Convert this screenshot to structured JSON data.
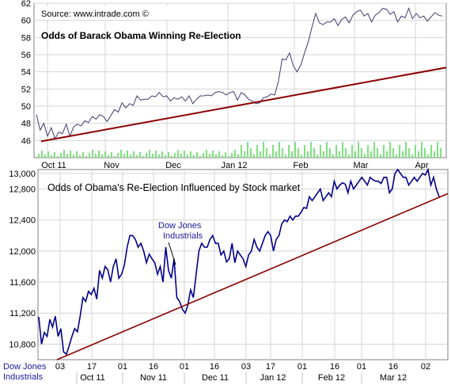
{
  "chart_data": [
    {
      "type": "line",
      "title": "Odds of Barack Obama Winning Re-Election",
      "source": "Source: www.intrade.com ©",
      "ylim": [
        44,
        62
      ],
      "y_ticks": [
        46,
        48,
        50,
        52,
        54,
        56,
        58,
        60,
        62
      ],
      "x_month_labels": [
        "Oct 11",
        "Nov",
        "Dec",
        "Jan 12",
        "Feb",
        "Mar",
        "Apr"
      ],
      "grid": true,
      "series": [
        {
          "values": [
            49,
            47.2,
            48,
            46.5,
            47.5,
            46.2,
            47,
            46.8,
            47.9,
            46.5,
            47.6,
            47.9,
            47.7,
            48.3,
            48.1,
            48.8,
            48.5,
            49,
            48.8,
            48.2,
            48.9,
            49.6,
            49.3,
            50.4,
            49.8,
            50.3,
            50.1,
            51.2,
            50.7,
            50.8,
            50.8,
            51.2,
            51.1,
            51.6,
            51.1,
            51.2,
            50.6,
            51,
            50.8,
            51.1,
            50.6,
            51.2,
            50.3,
            50.8,
            51.2,
            51.2,
            51.3,
            51.2,
            51.6,
            51.7,
            51.6,
            51.3,
            51.6,
            51.7,
            50.7,
            51.6,
            51.3,
            50.8,
            50.6,
            50.3,
            50.4,
            51,
            51.1,
            51.4,
            51.3,
            52.9,
            55.5,
            55.4,
            56.2,
            54.7,
            54,
            54.8,
            56.2,
            57.5,
            59.2,
            60.8,
            59.7,
            59.5,
            59.8,
            59.8,
            60.2,
            59.4,
            60.1,
            60.4,
            59.7,
            60.6,
            61,
            61.2,
            60.5,
            60.8,
            59.8,
            60.6,
            60.9,
            61.4,
            61.3,
            60.7,
            61,
            59.8,
            60.5,
            60.3,
            61.4,
            60.2,
            60.8,
            60.3,
            60.5,
            59.9,
            60.4,
            60.9,
            60.6,
            60.5
          ]
        },
        {
          "name": "trend",
          "x": [
            0,
            1
          ],
          "values": [
            45.9,
            54.5
          ]
        }
      ],
      "volume_bars": true
    },
    {
      "type": "line",
      "title": "Odds of Obama's Re-Election Influenced by Stock market",
      "ylim": [
        10600,
        13050
      ],
      "y_ticks": [
        10800,
        11200,
        11600,
        12000,
        12400,
        12800,
        13000
      ],
      "y_tick_labels": [
        "10,800",
        "11,200",
        "11,600",
        "12,000",
        "12,400",
        "12,800",
        "13,000"
      ],
      "x_day_labels": [
        "03",
        "17",
        "01",
        "16",
        "01",
        "16",
        "03",
        "17",
        "01",
        "16",
        "01",
        "16",
        "02"
      ],
      "x_month_labels": [
        "Oct 11",
        "Nov 11",
        "Dec 11",
        "Jan 12",
        "Feb 12",
        "Mar 12"
      ],
      "x_axis_label": "Dow Jones Industrials",
      "annotation": "Dow Jones Industrials",
      "grid": true,
      "series": [
        {
          "name": "Dow Jones Industrials",
          "values": [
            11150,
            10800,
            10950,
            10900,
            11120,
            11020,
            11160,
            10900,
            11000,
            10700,
            10670,
            10780,
            10900,
            11000,
            10960,
            11160,
            11400,
            11350,
            11480,
            11440,
            11520,
            11380,
            11750,
            11650,
            11800,
            11760,
            11600,
            11800,
            11900,
            11650,
            11700,
            11820,
            12050,
            12200,
            12200,
            12150,
            12050,
            12100,
            12000,
            11850,
            11960,
            11900,
            11850,
            11700,
            11800,
            11600,
            12050,
            11750,
            11650,
            11900,
            11400,
            11350,
            11250,
            11200,
            11300,
            11500,
            11400,
            11700,
            12000,
            12100,
            12050,
            12050,
            12150,
            12200,
            12100,
            12100,
            11950,
            12000,
            11860,
            11900,
            12100,
            11850,
            12000,
            11950,
            11900,
            11800,
            11950,
            12000,
            12150,
            12050,
            12000,
            12100,
            12200,
            12250,
            12200,
            12000,
            12150,
            12200,
            12350,
            12400,
            12380,
            12450,
            12400,
            12450,
            12450,
            12500,
            12560,
            12550,
            12700,
            12650,
            12700,
            12750,
            12800,
            12650,
            12700,
            12750,
            12700,
            12900,
            12800,
            12850,
            12880,
            12860,
            12750,
            12900,
            12800,
            12850,
            12900,
            12950,
            12900,
            12850,
            12950,
            12920,
            12900,
            12900,
            12870,
            12950,
            12950,
            12750,
            12800,
            13000,
            13050,
            13000,
            12950,
            12950,
            12850,
            12900,
            12950,
            12900,
            12950,
            13000,
            12980,
            13050,
            12850,
            12950,
            12800,
            12700
          ],
          "color": "#00008b"
        },
        {
          "name": "trend",
          "x": [
            0,
            1
          ],
          "values": [
            10600,
            12740
          ]
        }
      ]
    }
  ]
}
